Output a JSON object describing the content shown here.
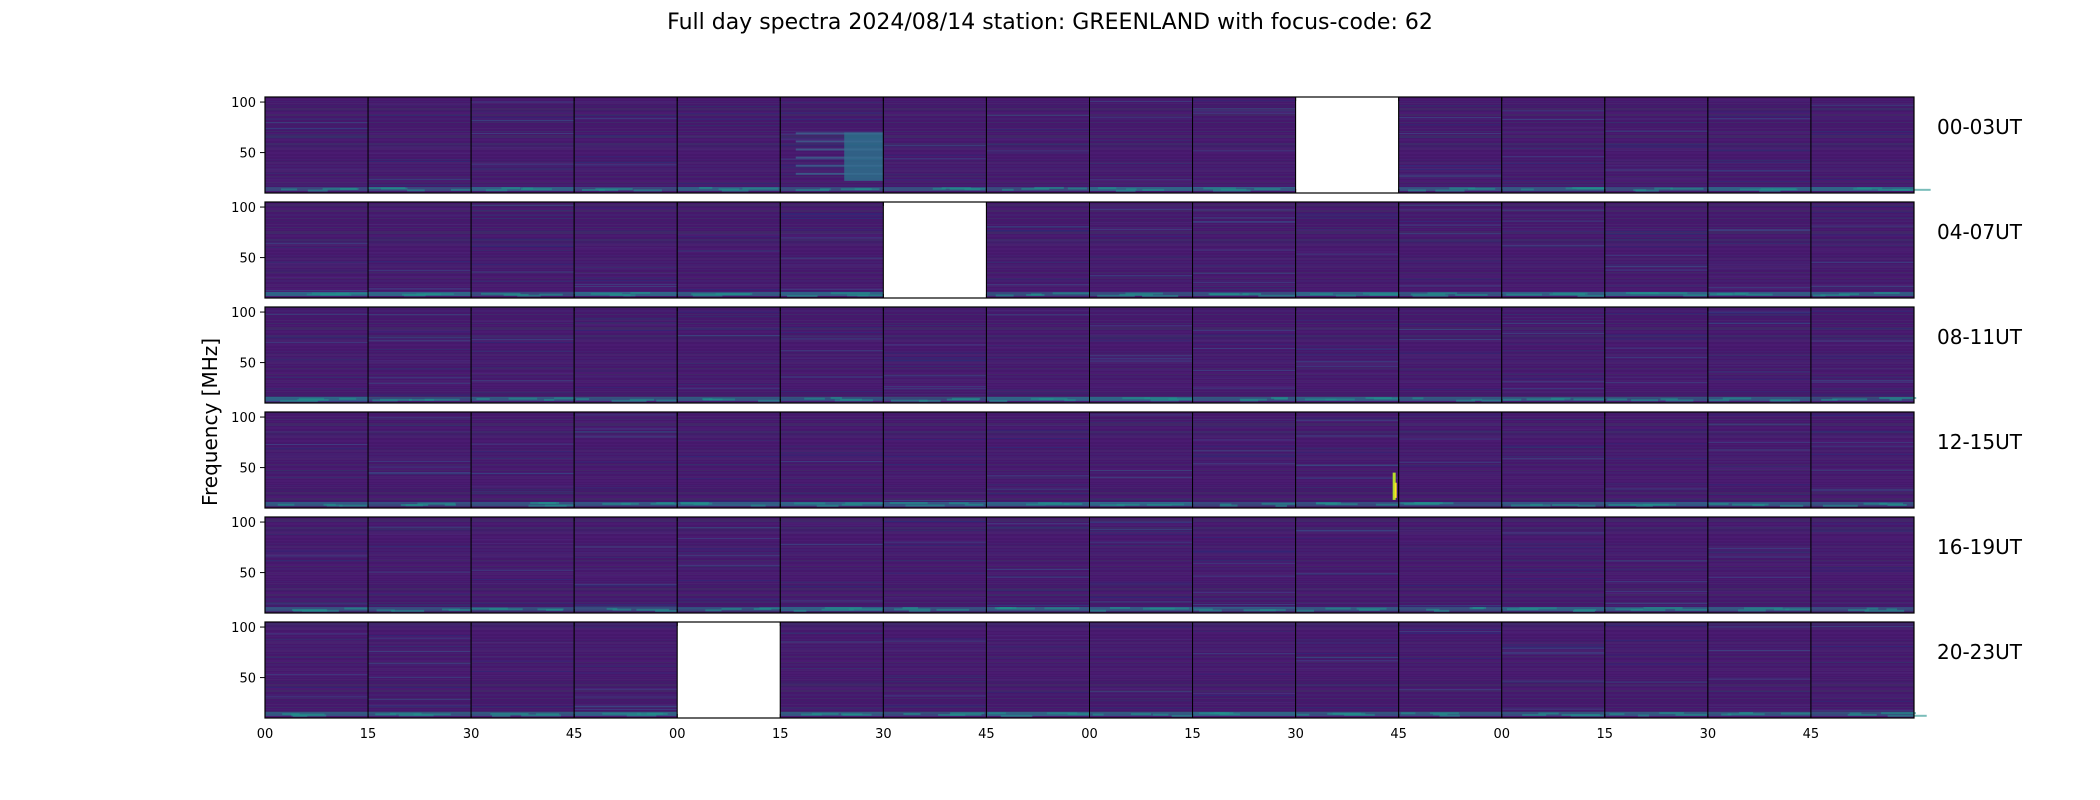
{
  "title": "Full day spectra 2024/08/14 station: GREENLAND with focus-code: 62",
  "chart_data": {
    "type": "heatmap",
    "title": "Full day spectra 2024/08/14 station: GREENLAND with focus-code: 62",
    "ylabel": "Frequency [MHz]",
    "yticks": [
      "100",
      "50"
    ],
    "ylim": [
      10,
      105
    ],
    "xticks": [
      "00",
      "15",
      "30",
      "45",
      "00",
      "15",
      "30",
      "45",
      "00",
      "15",
      "30",
      "45",
      "00",
      "15",
      "30",
      "45"
    ],
    "colormap": "viridis",
    "panels_per_row": 16,
    "panel_minutes": 15,
    "rows": [
      {
        "label": "00-03UT",
        "missing": [
          10
        ],
        "bursts": [],
        "bright_panels": [
          5
        ]
      },
      {
        "label": "04-07UT",
        "missing": [
          6
        ],
        "bursts": [],
        "bright_panels": []
      },
      {
        "label": "08-11UT",
        "missing": [],
        "bursts": [],
        "bright_panels": []
      },
      {
        "label": "12-15UT",
        "missing": [],
        "bursts": [
          10
        ],
        "bright_panels": []
      },
      {
        "label": "16-19UT",
        "missing": [],
        "bursts": [],
        "bright_panels": []
      },
      {
        "label": "20-23UT",
        "missing": [
          4
        ],
        "bursts": [],
        "bright_panels": []
      }
    ]
  }
}
